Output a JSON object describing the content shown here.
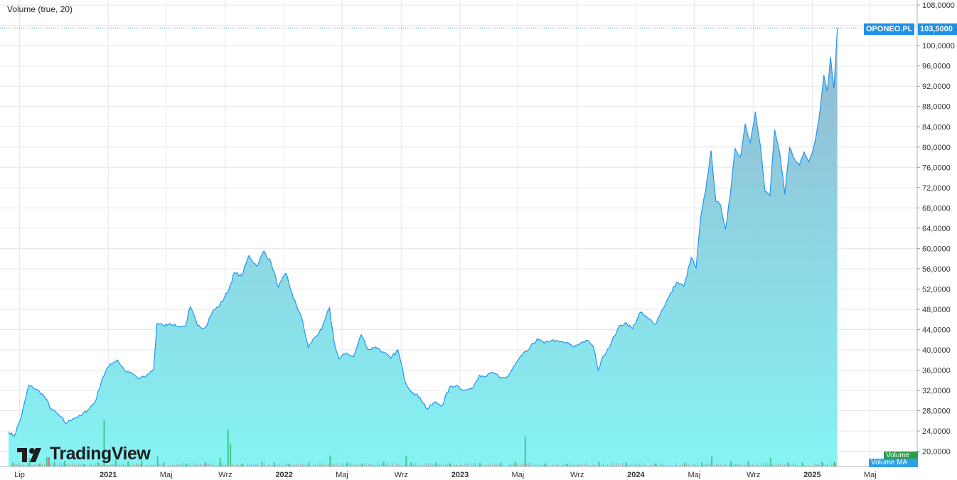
{
  "indicator_label": "Volume (true, 20)",
  "symbol_label": "OPONEO.PL",
  "last_price_label": "103,5000",
  "volume_tag": "Volume",
  "volume_ma_tag": "Volume MA",
  "logo_text": "TradingView",
  "logo_icon": "tradingview-logo-icon",
  "colors": {
    "line": "#2196f3",
    "area_top": "#8fb4cf",
    "area_bottom": "#7ff3f3",
    "grid": "#e6e6e6",
    "vol_up": "#33c17a",
    "vol_down": "#e05a5a",
    "vol_neutral": "#9aa7a7",
    "price_dotted": "#1e90e6"
  },
  "chart_data": {
    "type": "area",
    "title": "",
    "xlabel": "",
    "ylabel": "",
    "ylim": [
      17000,
      109000
    ],
    "y_ticks": [
      20000,
      24000,
      28000,
      32000,
      36000,
      40000,
      44000,
      48000,
      52000,
      56000,
      60000,
      64000,
      68000,
      72000,
      76000,
      80000,
      84000,
      88000,
      92000,
      96000,
      100000,
      104000,
      108000
    ],
    "y_tick_labels": [
      "20,0000",
      "24,0000",
      "28,0000",
      "32,0000",
      "36,0000",
      "40,0000",
      "44,0000",
      "48,0000",
      "52,0000",
      "56,0000",
      "60,0000",
      "64,0000",
      "68,0000",
      "72,0000",
      "76,0000",
      "80,0000",
      "84,0000",
      "88,0000",
      "92,0000",
      "96,0000",
      "100,0000",
      "",
      "108,0000"
    ],
    "x_ticks": [
      {
        "label": "Lip",
        "date": "2020-07",
        "year": false
      },
      {
        "label": "2021",
        "date": "2021-01",
        "year": true
      },
      {
        "label": "Maj",
        "date": "2021-05",
        "year": false
      },
      {
        "label": "Wrz",
        "date": "2021-09",
        "year": false
      },
      {
        "label": "2022",
        "date": "2022-01",
        "year": true
      },
      {
        "label": "Maj",
        "date": "2022-05",
        "year": false
      },
      {
        "label": "Wrz",
        "date": "2022-09",
        "year": false
      },
      {
        "label": "2023",
        "date": "2023-01",
        "year": true
      },
      {
        "label": "Maj",
        "date": "2023-05",
        "year": false
      },
      {
        "label": "Wrz",
        "date": "2023-09",
        "year": false
      },
      {
        "label": "2024",
        "date": "2024-01",
        "year": true
      },
      {
        "label": "Maj",
        "date": "2024-05",
        "year": false
      },
      {
        "label": "Wrz",
        "date": "2024-09",
        "year": false
      },
      {
        "label": "2025",
        "date": "2025-01",
        "year": true
      },
      {
        "label": "Maj",
        "date": "2025-05",
        "year": false
      }
    ],
    "x_range": [
      "2020-06-08",
      "2025-05-25"
    ],
    "last_price": 103500,
    "price_series": [
      [
        "2020-06-08",
        23800
      ],
      [
        "2020-06-20",
        23000
      ],
      [
        "2020-07-05",
        27000
      ],
      [
        "2020-07-20",
        33000
      ],
      [
        "2020-08-05",
        32200
      ],
      [
        "2020-08-20",
        31000
      ],
      [
        "2020-09-05",
        28300
      ],
      [
        "2020-09-20",
        27200
      ],
      [
        "2020-10-05",
        25500
      ],
      [
        "2020-10-20",
        26500
      ],
      [
        "2020-11-05",
        27000
      ],
      [
        "2020-11-20",
        28200
      ],
      [
        "2020-12-05",
        29800
      ],
      [
        "2020-12-20",
        34500
      ],
      [
        "2021-01-05",
        37200
      ],
      [
        "2021-01-20",
        38000
      ],
      [
        "2021-02-05",
        35800
      ],
      [
        "2021-02-20",
        35300
      ],
      [
        "2021-03-05",
        34300
      ],
      [
        "2021-03-20",
        34800
      ],
      [
        "2021-04-05",
        36200
      ],
      [
        "2021-04-12",
        45200
      ],
      [
        "2021-04-25",
        44800
      ],
      [
        "2021-05-10",
        45200
      ],
      [
        "2021-05-25",
        44600
      ],
      [
        "2021-06-10",
        44700
      ],
      [
        "2021-06-20",
        48500
      ],
      [
        "2021-07-05",
        44800
      ],
      [
        "2021-07-20",
        44300
      ],
      [
        "2021-08-05",
        47500
      ],
      [
        "2021-08-20",
        48800
      ],
      [
        "2021-09-05",
        51300
      ],
      [
        "2021-09-20",
        55200
      ],
      [
        "2021-10-05",
        54600
      ],
      [
        "2021-10-20",
        58600
      ],
      [
        "2021-11-05",
        56500
      ],
      [
        "2021-11-20",
        59500
      ],
      [
        "2021-12-05",
        57200
      ],
      [
        "2021-12-20",
        52400
      ],
      [
        "2022-01-05",
        55100
      ],
      [
        "2022-01-20",
        50200
      ],
      [
        "2022-02-05",
        46800
      ],
      [
        "2022-02-20",
        40500
      ],
      [
        "2022-03-05",
        42400
      ],
      [
        "2022-03-20",
        44000
      ],
      [
        "2022-04-05",
        48300
      ],
      [
        "2022-04-15",
        41400
      ],
      [
        "2022-04-25",
        38200
      ],
      [
        "2022-05-10",
        39400
      ],
      [
        "2022-05-25",
        38600
      ],
      [
        "2022-06-10",
        43000
      ],
      [
        "2022-06-25",
        40000
      ],
      [
        "2022-07-10",
        40600
      ],
      [
        "2022-07-25",
        39600
      ],
      [
        "2022-08-10",
        38300
      ],
      [
        "2022-08-25",
        40000
      ],
      [
        "2022-09-10",
        33500
      ],
      [
        "2022-09-25",
        31600
      ],
      [
        "2022-10-10",
        30600
      ],
      [
        "2022-10-25",
        28300
      ],
      [
        "2022-11-10",
        29700
      ],
      [
        "2022-11-25",
        29000
      ],
      [
        "2022-12-10",
        32600
      ],
      [
        "2022-12-25",
        33000
      ],
      [
        "2023-01-10",
        32000
      ],
      [
        "2023-01-25",
        32300
      ],
      [
        "2023-02-10",
        35000
      ],
      [
        "2023-02-25",
        34800
      ],
      [
        "2023-03-10",
        35600
      ],
      [
        "2023-03-25",
        34400
      ],
      [
        "2023-04-10",
        34700
      ],
      [
        "2023-04-25",
        37000
      ],
      [
        "2023-05-10",
        39000
      ],
      [
        "2023-05-25",
        40200
      ],
      [
        "2023-06-10",
        42200
      ],
      [
        "2023-06-25",
        41300
      ],
      [
        "2023-07-10",
        41900
      ],
      [
        "2023-07-25",
        41600
      ],
      [
        "2023-08-10",
        41400
      ],
      [
        "2023-08-25",
        40600
      ],
      [
        "2023-09-10",
        41500
      ],
      [
        "2023-09-25",
        41800
      ],
      [
        "2023-10-05",
        40500
      ],
      [
        "2023-10-15",
        36000
      ],
      [
        "2023-10-25",
        38800
      ],
      [
        "2023-11-10",
        41200
      ],
      [
        "2023-11-25",
        44300
      ],
      [
        "2023-12-10",
        45400
      ],
      [
        "2023-12-25",
        44200
      ],
      [
        "2024-01-10",
        47400
      ],
      [
        "2024-01-25",
        46300
      ],
      [
        "2024-02-10",
        45100
      ],
      [
        "2024-02-25",
        48000
      ],
      [
        "2024-03-10",
        50500
      ],
      [
        "2024-03-25",
        53300
      ],
      [
        "2024-04-10",
        52600
      ],
      [
        "2024-04-25",
        58200
      ],
      [
        "2024-05-05",
        56200
      ],
      [
        "2024-05-15",
        66500
      ],
      [
        "2024-05-25",
        71500
      ],
      [
        "2024-06-05",
        79300
      ],
      [
        "2024-06-15",
        69300
      ],
      [
        "2024-06-25",
        68500
      ],
      [
        "2024-07-05",
        63800
      ],
      [
        "2024-07-15",
        70600
      ],
      [
        "2024-07-25",
        79700
      ],
      [
        "2024-08-05",
        78000
      ],
      [
        "2024-08-15",
        84600
      ],
      [
        "2024-08-25",
        80800
      ],
      [
        "2024-09-05",
        87000
      ],
      [
        "2024-09-15",
        80500
      ],
      [
        "2024-09-25",
        71300
      ],
      [
        "2024-10-05",
        70400
      ],
      [
        "2024-10-15",
        83400
      ],
      [
        "2024-10-25",
        79000
      ],
      [
        "2024-11-05",
        70700
      ],
      [
        "2024-11-15",
        79900
      ],
      [
        "2024-11-25",
        77700
      ],
      [
        "2024-12-05",
        76400
      ],
      [
        "2024-12-15",
        79000
      ],
      [
        "2024-12-25",
        77100
      ],
      [
        "2025-01-05",
        80400
      ],
      [
        "2025-01-15",
        85600
      ],
      [
        "2025-01-25",
        94200
      ],
      [
        "2025-02-01",
        91000
      ],
      [
        "2025-02-08",
        97800
      ],
      [
        "2025-02-15",
        91600
      ],
      [
        "2025-02-22",
        103500
      ]
    ],
    "volume_series": [
      [
        "2020-06-15",
        1200
      ],
      [
        "2020-07-20",
        2500
      ],
      [
        "2020-08-10",
        900
      ],
      [
        "2020-08-25",
        2800
      ],
      [
        "2020-09-10",
        1500
      ],
      [
        "2020-10-01",
        1700
      ],
      [
        "2020-11-10",
        800
      ],
      [
        "2020-12-10",
        1200
      ],
      [
        "2020-12-22",
        14000
      ],
      [
        "2021-01-15",
        2000
      ],
      [
        "2021-02-10",
        1500
      ],
      [
        "2021-03-10",
        1800
      ],
      [
        "2021-04-12",
        3000
      ],
      [
        "2021-04-25",
        1200
      ],
      [
        "2021-06-10",
        900
      ],
      [
        "2021-07-20",
        1300
      ],
      [
        "2021-08-20",
        2600
      ],
      [
        "2021-09-05",
        11000
      ],
      [
        "2021-09-10",
        7000
      ],
      [
        "2021-10-05",
        1000
      ],
      [
        "2021-11-15",
        1500
      ],
      [
        "2021-12-10",
        1200
      ],
      [
        "2022-01-10",
        800
      ],
      [
        "2022-02-20",
        1200
      ],
      [
        "2022-04-05",
        3300
      ],
      [
        "2022-05-10",
        1200
      ],
      [
        "2022-06-10",
        900
      ],
      [
        "2022-07-25",
        1500
      ],
      [
        "2022-09-10",
        3100
      ],
      [
        "2022-09-20",
        1300
      ],
      [
        "2022-11-10",
        1200
      ],
      [
        "2022-12-10",
        900
      ],
      [
        "2023-02-10",
        1100
      ],
      [
        "2023-03-25",
        1200
      ],
      [
        "2023-04-25",
        1400
      ],
      [
        "2023-05-15",
        9000
      ],
      [
        "2023-06-25",
        1000
      ],
      [
        "2023-08-10",
        800
      ],
      [
        "2023-10-15",
        1400
      ],
      [
        "2023-12-10",
        1200
      ],
      [
        "2024-02-10",
        1000
      ],
      [
        "2024-04-10",
        1100
      ],
      [
        "2024-05-15",
        1300
      ],
      [
        "2024-06-05",
        3000
      ],
      [
        "2024-07-15",
        1600
      ],
      [
        "2024-08-20",
        1600
      ],
      [
        "2024-10-05",
        2600
      ],
      [
        "2024-11-10",
        1200
      ],
      [
        "2024-12-10",
        1300
      ],
      [
        "2025-01-20",
        1400
      ],
      [
        "2025-02-15",
        1600
      ]
    ],
    "volume_red": [
      [
        "2020-08-25",
        2800
      ]
    ],
    "volume_ymax": 40000
  }
}
